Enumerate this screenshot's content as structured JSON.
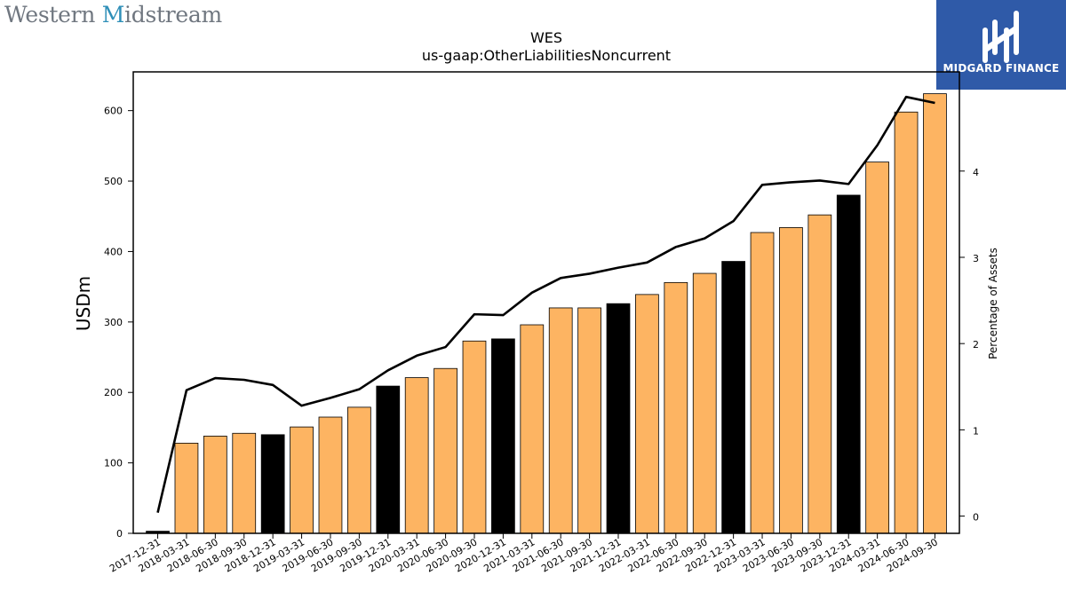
{
  "header": {
    "company_logo": {
      "part1": "Western ",
      "part2": "M",
      "part3": "idstream"
    },
    "brand": {
      "name": "MIDGARD FINANCE",
      "background": "#2f5aa8"
    }
  },
  "chart_data": {
    "type": "bar",
    "title": "WES",
    "subtitle": "us-gaap:OtherLiabilitiesNoncurrent",
    "ylabel": "USDm",
    "y2label": "Percentage of Assets",
    "ylim": [
      0,
      655
    ],
    "y2lim": [
      -0.2,
      5.15
    ],
    "yticks": [
      0,
      100,
      200,
      300,
      400,
      500,
      600
    ],
    "y2ticks": [
      0,
      1,
      2,
      3,
      4
    ],
    "categories": [
      "2017-12-31",
      "2018-03-31",
      "2018-06-30",
      "2018-09-30",
      "2018-12-31",
      "2019-03-31",
      "2019-06-30",
      "2019-09-30",
      "2019-12-31",
      "2020-03-31",
      "2020-06-30",
      "2020-09-30",
      "2020-12-31",
      "2021-03-31",
      "2021-06-30",
      "2021-09-30",
      "2021-12-31",
      "2022-03-31",
      "2022-06-30",
      "2022-09-30",
      "2022-12-31",
      "2023-03-31",
      "2023-06-30",
      "2023-09-30",
      "2023-12-31",
      "2024-03-31",
      "2024-06-30",
      "2024-09-30"
    ],
    "series": [
      {
        "values": [
          3,
          128,
          138,
          142,
          140,
          151,
          165,
          179,
          209,
          221,
          234,
          273,
          276,
          296,
          320,
          320,
          326,
          339,
          356,
          369,
          386,
          427,
          434,
          452,
          480,
          527,
          598,
          624
        ],
        "colors": {
          "quarter": "#fdb462",
          "year_end": "#000000"
        }
      },
      {
        "type": "line",
        "axis": "right",
        "values": [
          0.04,
          1.46,
          1.6,
          1.58,
          1.52,
          1.28,
          1.37,
          1.47,
          1.69,
          1.86,
          1.96,
          2.34,
          2.33,
          2.59,
          2.76,
          2.81,
          2.88,
          2.94,
          3.12,
          3.22,
          3.42,
          3.84,
          3.87,
          3.89,
          3.85,
          4.3,
          4.86,
          4.79
        ],
        "color": "#000000"
      }
    ]
  }
}
